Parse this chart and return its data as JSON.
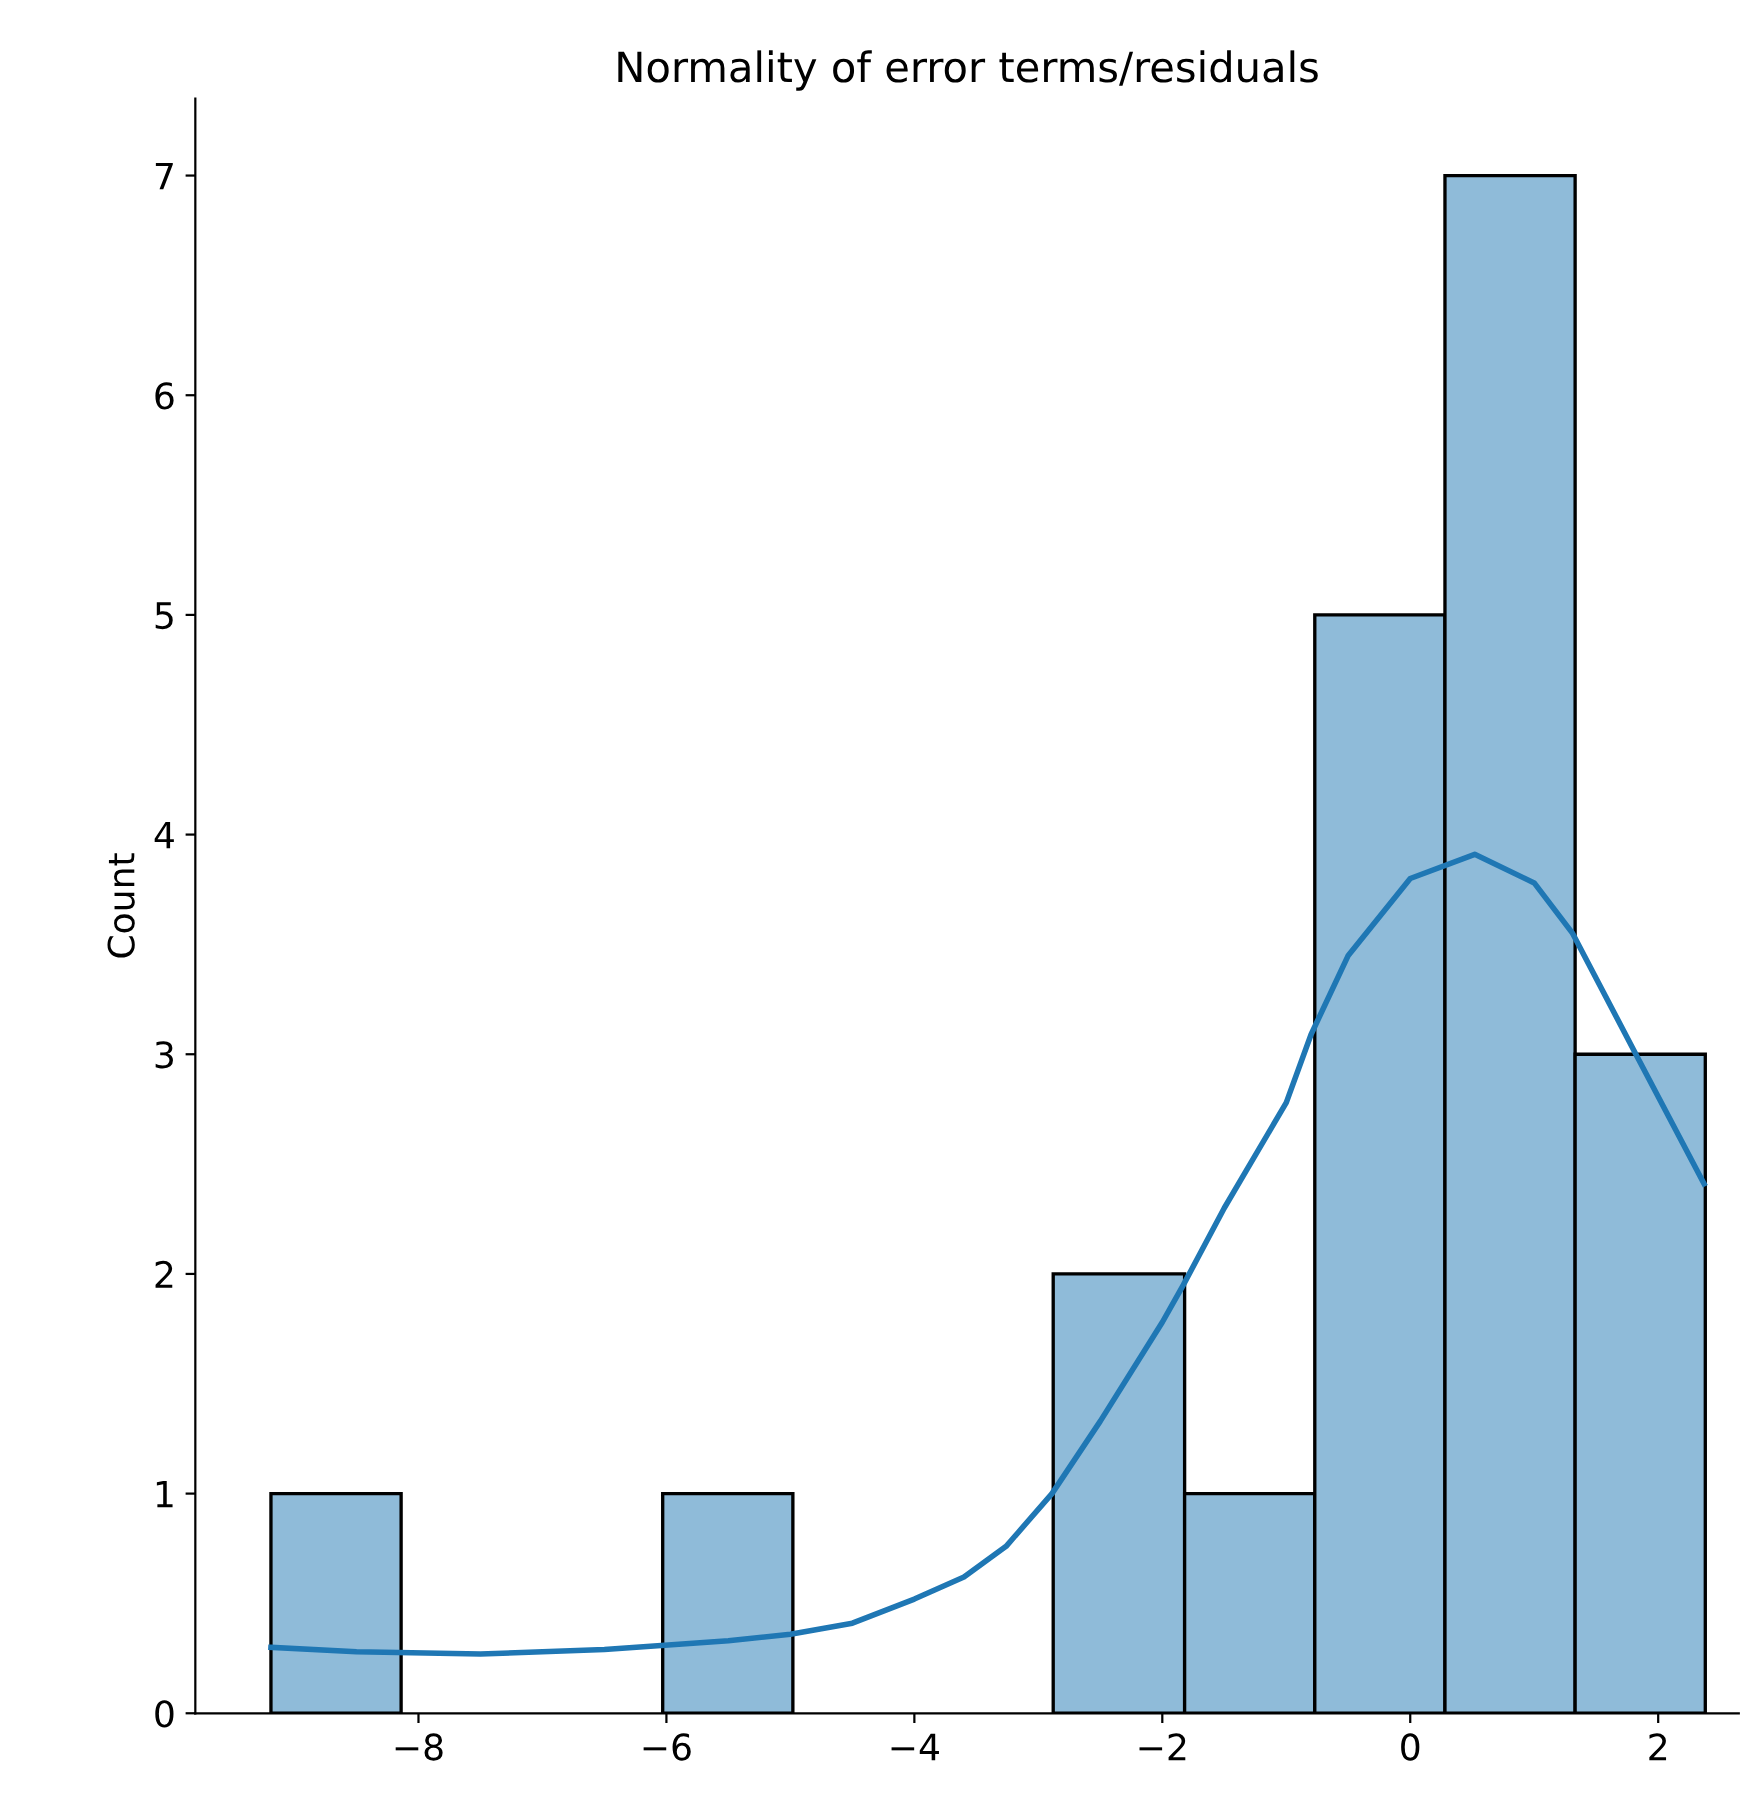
{
  "chart_data": {
    "type": "histogram",
    "title": "Normality of error terms/residuals",
    "ylabel": "Count",
    "bins": [
      -9.19,
      -8.14,
      -6.03,
      -4.98,
      -2.88,
      -1.82,
      -0.77,
      0.28,
      1.33,
      2.38
    ],
    "values": [
      1,
      0,
      1,
      0,
      2,
      1,
      5,
      7,
      3
    ],
    "color": "#8fbbd9",
    "series": [
      {
        "type": "line",
        "color": "#1f77b4",
        "x": [
          -9.19,
          -8.5,
          -7.5,
          -6.5,
          -5.5,
          -5,
          -4.5,
          -4,
          -3.6,
          -3.26,
          -2.89,
          -2.5,
          -2,
          -1.83,
          -1.5,
          -1,
          -0.8,
          -0.5,
          0,
          0.52,
          1,
          1.31,
          1.82,
          2.37
        ],
        "values": [
          0.3,
          0.28,
          0.27,
          0.29,
          0.33,
          0.36,
          0.41,
          0.52,
          0.62,
          0.76,
          1.0,
          1.33,
          1.78,
          1.95,
          2.3,
          2.78,
          3.09,
          3.45,
          3.8,
          3.91,
          3.78,
          3.55,
          3.0,
          2.41
        ]
      }
    ],
    "xlim": [
      -9.8,
      2.65
    ],
    "ylim": [
      0,
      7.35
    ],
    "xticks": [
      {
        "value": -8,
        "label": "−8"
      },
      {
        "value": -6,
        "label": "−6"
      },
      {
        "value": -4,
        "label": "−4"
      },
      {
        "value": -2,
        "label": "−2"
      },
      0,
      2
    ],
    "yticks": [
      0,
      1,
      2,
      3,
      4,
      5,
      6,
      7
    ],
    "grid": false,
    "legend": false
  }
}
